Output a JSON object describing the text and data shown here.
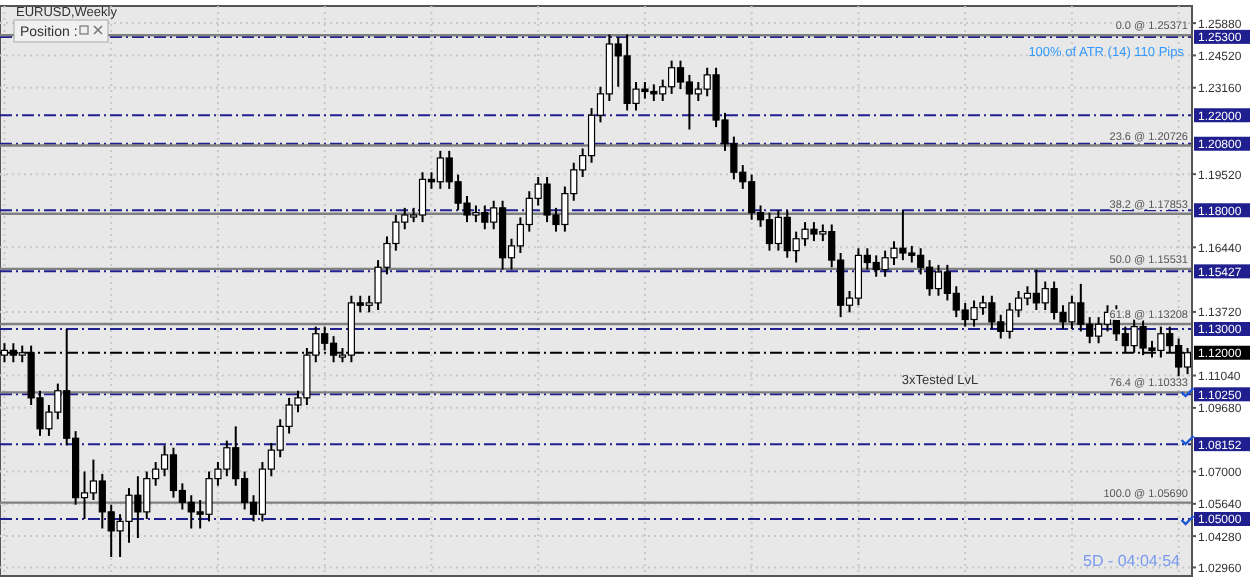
{
  "chart_data": {
    "type": "candlestick",
    "title": "EURUSD,Weekly",
    "categories": [
      null,
      null,
      null,
      null,
      null,
      null,
      null,
      null,
      null,
      null,
      null,
      null,
      null,
      null,
      null,
      null,
      null,
      null,
      null,
      null,
      null,
      null,
      null,
      null,
      null,
      null,
      null,
      null,
      null,
      null,
      null,
      null,
      null,
      null,
      null,
      null,
      null,
      null,
      null,
      null,
      null,
      null,
      null,
      null,
      null,
      null,
      null,
      null,
      null,
      null,
      null,
      null,
      null,
      null,
      null,
      null,
      null,
      null,
      null,
      null,
      null,
      null,
      null,
      null,
      null,
      null,
      null,
      null,
      null,
      null,
      null,
      null,
      null,
      null,
      null,
      null,
      null,
      null,
      null,
      null,
      null,
      null,
      null,
      null,
      null,
      null,
      null,
      null,
      null,
      null,
      null,
      null,
      null,
      null,
      null,
      null,
      null,
      null,
      null,
      null,
      null,
      null,
      null,
      null,
      null,
      null,
      null,
      null,
      null,
      null,
      null,
      null,
      null,
      null,
      null,
      null,
      null,
      null,
      null,
      null,
      null,
      null,
      null,
      null,
      null,
      null,
      null,
      null,
      null,
      null,
      null,
      null,
      null,
      null
    ],
    "ohlc": [
      [
        1.119,
        1.124,
        1.116,
        1.121
      ],
      [
        1.121,
        1.124,
        1.116,
        1.119
      ],
      [
        1.119,
        1.123,
        1.116,
        1.12
      ],
      [
        1.12,
        1.123,
        1.098,
        1.101
      ],
      [
        1.101,
        1.104,
        1.085,
        1.088
      ],
      [
        1.088,
        1.098,
        1.085,
        1.095
      ],
      [
        1.095,
        1.107,
        1.092,
        1.104
      ],
      [
        1.104,
        1.13,
        1.081,
        1.084
      ],
      [
        1.084,
        1.087,
        1.056,
        1.059
      ],
      [
        1.059,
        1.07,
        1.05,
        1.061
      ],
      [
        1.061,
        1.075,
        1.058,
        1.066
      ],
      [
        1.066,
        1.069,
        1.046,
        1.053
      ],
      [
        1.053,
        1.056,
        1.034,
        1.045
      ],
      [
        1.045,
        1.052,
        1.034,
        1.049
      ],
      [
        1.049,
        1.063,
        1.04,
        1.06
      ],
      [
        1.06,
        1.068,
        1.042,
        1.053
      ],
      [
        1.053,
        1.07,
        1.05,
        1.067
      ],
      [
        1.067,
        1.074,
        1.064,
        1.071
      ],
      [
        1.071,
        1.081,
        1.068,
        1.077
      ],
      [
        1.077,
        1.08,
        1.059,
        1.062
      ],
      [
        1.062,
        1.065,
        1.054,
        1.057
      ],
      [
        1.057,
        1.06,
        1.046,
        1.053
      ],
      [
        1.053,
        1.058,
        1.046,
        1.052
      ],
      [
        1.052,
        1.07,
        1.049,
        1.067
      ],
      [
        1.067,
        1.074,
        1.064,
        1.071
      ],
      [
        1.071,
        1.083,
        1.068,
        1.08
      ],
      [
        1.08,
        1.089,
        1.064,
        1.067
      ],
      [
        1.067,
        1.07,
        1.054,
        1.057
      ],
      [
        1.057,
        1.06,
        1.049,
        1.052
      ],
      [
        1.052,
        1.074,
        1.049,
        1.071
      ],
      [
        1.071,
        1.082,
        1.068,
        1.079
      ],
      [
        1.079,
        1.092,
        1.076,
        1.089
      ],
      [
        1.089,
        1.101,
        1.086,
        1.098
      ],
      [
        1.098,
        1.104,
        1.095,
        1.101
      ],
      [
        1.101,
        1.122,
        1.098,
        1.119
      ],
      [
        1.119,
        1.131,
        1.116,
        1.128
      ],
      [
        1.128,
        1.131,
        1.121,
        1.124
      ],
      [
        1.124,
        1.127,
        1.116,
        1.119
      ],
      [
        1.119,
        1.122,
        1.116,
        1.119
      ],
      [
        1.119,
        1.144,
        1.116,
        1.141
      ],
      [
        1.141,
        1.144,
        1.137,
        1.14
      ],
      [
        1.14,
        1.144,
        1.137,
        1.141
      ],
      [
        1.141,
        1.159,
        1.138,
        1.156
      ],
      [
        1.156,
        1.169,
        1.153,
        1.166
      ],
      [
        1.166,
        1.178,
        1.163,
        1.175
      ],
      [
        1.175,
        1.181,
        1.172,
        1.178
      ],
      [
        1.178,
        1.181,
        1.175,
        1.178
      ],
      [
        1.178,
        1.196,
        1.175,
        1.193
      ],
      [
        1.193,
        1.196,
        1.189,
        1.192
      ],
      [
        1.192,
        1.205,
        1.189,
        1.202
      ],
      [
        1.202,
        1.205,
        1.189,
        1.192
      ],
      [
        1.192,
        1.195,
        1.18,
        1.183
      ],
      [
        1.183,
        1.186,
        1.175,
        1.178
      ],
      [
        1.178,
        1.182,
        1.175,
        1.179
      ],
      [
        1.179,
        1.182,
        1.172,
        1.175
      ],
      [
        1.175,
        1.184,
        1.172,
        1.181
      ],
      [
        1.181,
        1.184,
        1.155,
        1.16
      ],
      [
        1.16,
        1.168,
        1.155,
        1.165
      ],
      [
        1.165,
        1.177,
        1.162,
        1.174
      ],
      [
        1.174,
        1.188,
        1.171,
        1.185
      ],
      [
        1.185,
        1.194,
        1.182,
        1.191
      ],
      [
        1.191,
        1.194,
        1.175,
        1.178
      ],
      [
        1.178,
        1.181,
        1.171,
        1.174
      ],
      [
        1.174,
        1.19,
        1.171,
        1.187
      ],
      [
        1.187,
        1.2,
        1.184,
        1.197
      ],
      [
        1.197,
        1.206,
        1.194,
        1.203
      ],
      [
        1.203,
        1.223,
        1.2,
        1.22
      ],
      [
        1.22,
        1.232,
        1.217,
        1.229
      ],
      [
        1.229,
        1.254,
        1.226,
        1.25
      ],
      [
        1.25,
        1.253,
        1.232,
        1.245
      ],
      [
        1.245,
        1.254,
        1.222,
        1.225
      ],
      [
        1.225,
        1.234,
        1.222,
        1.231
      ],
      [
        1.231,
        1.234,
        1.227,
        1.23
      ],
      [
        1.23,
        1.233,
        1.226,
        1.229
      ],
      [
        1.229,
        1.235,
        1.226,
        1.232
      ],
      [
        1.232,
        1.243,
        1.229,
        1.24
      ],
      [
        1.24,
        1.243,
        1.231,
        1.234
      ],
      [
        1.234,
        1.237,
        1.214,
        1.229
      ],
      [
        1.229,
        1.234,
        1.226,
        1.231
      ],
      [
        1.231,
        1.24,
        1.228,
        1.237
      ],
      [
        1.237,
        1.24,
        1.215,
        1.218
      ],
      [
        1.218,
        1.221,
        1.205,
        1.208
      ],
      [
        1.208,
        1.211,
        1.193,
        1.196
      ],
      [
        1.196,
        1.199,
        1.189,
        1.192
      ],
      [
        1.192,
        1.195,
        1.176,
        1.179
      ],
      [
        1.179,
        1.182,
        1.173,
        1.176
      ],
      [
        1.176,
        1.179,
        1.163,
        1.166
      ],
      [
        1.166,
        1.18,
        1.163,
        1.177
      ],
      [
        1.177,
        1.18,
        1.16,
        1.163
      ],
      [
        1.163,
        1.171,
        1.158,
        1.168
      ],
      [
        1.168,
        1.175,
        1.165,
        1.172
      ],
      [
        1.172,
        1.175,
        1.167,
        1.17
      ],
      [
        1.17,
        1.174,
        1.167,
        1.171
      ],
      [
        1.171,
        1.174,
        1.156,
        1.159
      ],
      [
        1.159,
        1.162,
        1.135,
        1.14
      ],
      [
        1.14,
        1.146,
        1.137,
        1.143
      ],
      [
        1.143,
        1.164,
        1.14,
        1.161
      ],
      [
        1.161,
        1.164,
        1.155,
        1.158
      ],
      [
        1.158,
        1.161,
        1.152,
        1.155
      ],
      [
        1.155,
        1.163,
        1.152,
        1.16
      ],
      [
        1.16,
        1.167,
        1.157,
        1.164
      ],
      [
        1.164,
        1.18,
        1.159,
        1.162
      ],
      [
        1.162,
        1.165,
        1.158,
        1.161
      ],
      [
        1.161,
        1.164,
        1.153,
        1.156
      ],
      [
        1.156,
        1.159,
        1.144,
        1.147
      ],
      [
        1.147,
        1.157,
        1.144,
        1.154
      ],
      [
        1.154,
        1.157,
        1.142,
        1.145
      ],
      [
        1.145,
        1.148,
        1.135,
        1.138
      ],
      [
        1.138,
        1.141,
        1.131,
        1.134
      ],
      [
        1.134,
        1.142,
        1.131,
        1.139
      ],
      [
        1.139,
        1.144,
        1.136,
        1.141
      ],
      [
        1.141,
        1.144,
        1.13,
        1.133
      ],
      [
        1.133,
        1.136,
        1.126,
        1.129
      ],
      [
        1.129,
        1.141,
        1.126,
        1.138
      ],
      [
        1.138,
        1.146,
        1.135,
        1.143
      ],
      [
        1.143,
        1.148,
        1.14,
        1.145
      ],
      [
        1.145,
        1.155,
        1.138,
        1.141
      ],
      [
        1.141,
        1.15,
        1.138,
        1.147
      ],
      [
        1.147,
        1.15,
        1.134,
        1.137
      ],
      [
        1.137,
        1.14,
        1.13,
        1.133
      ],
      [
        1.133,
        1.144,
        1.13,
        1.141
      ],
      [
        1.141,
        1.149,
        1.129,
        1.132
      ],
      [
        1.132,
        1.135,
        1.124,
        1.127
      ],
      [
        1.127,
        1.135,
        1.124,
        1.132
      ],
      [
        1.132,
        1.14,
        1.129,
        1.137
      ],
      [
        1.137,
        1.14,
        1.125,
        1.128
      ],
      [
        1.128,
        1.131,
        1.12,
        1.123
      ],
      [
        1.123,
        1.134,
        1.12,
        1.131
      ],
      [
        1.131,
        1.134,
        1.119,
        1.122
      ],
      [
        1.122,
        1.125,
        1.118,
        1.121
      ],
      [
        1.121,
        1.131,
        1.118,
        1.128
      ],
      [
        1.128,
        1.131,
        1.12,
        1.123
      ],
      [
        1.123,
        1.126,
        1.109,
        1.114
      ],
      [
        1.114,
        1.122,
        1.111,
        1.12
      ]
    ],
    "ylim": [
      1.026,
      1.266
    ],
    "yticks": [
      {
        "value": 1.2588,
        "label": "1.25880"
      },
      {
        "value": 1.2452,
        "label": "1.24520"
      },
      {
        "value": 1.2316,
        "label": "1.23160"
      },
      {
        "value": 1.1952,
        "label": "1.19520"
      },
      {
        "value": 1.1644,
        "label": "1.16440"
      },
      {
        "value": 1.1372,
        "label": "1.13720"
      },
      {
        "value": 1.1104,
        "label": "1.11040"
      },
      {
        "value": 1.0968,
        "label": "1.09680"
      },
      {
        "value": 1.07,
        "label": "1.07000"
      },
      {
        "value": 1.0564,
        "label": "1.05640"
      },
      {
        "value": 1.0428,
        "label": "1.04280"
      },
      {
        "value": 1.0296,
        "label": "1.02960"
      }
    ],
    "grid": true,
    "ref_lines": [
      {
        "axis": "y",
        "value": 1.253,
        "label": "1.25300",
        "color": "#1f1f8f",
        "line_style": "dashed"
      },
      {
        "axis": "y",
        "value": 1.22,
        "label": "1.22000",
        "color": "#1f1f8f",
        "line_style": "dashed"
      },
      {
        "axis": "y",
        "value": 1.208,
        "label": "1.20800",
        "color": "#1f1f8f",
        "line_style": "dashed"
      },
      {
        "axis": "y",
        "value": 1.18,
        "label": "1.18000",
        "color": "#1f1f8f",
        "line_style": "dashed"
      },
      {
        "axis": "y",
        "value": 1.15427,
        "label": "1.15427",
        "color": "#1f1f8f",
        "line_style": "dashed"
      },
      {
        "axis": "y",
        "value": 1.13,
        "label": "1.13000",
        "color": "#1f1f8f",
        "line_style": "dashed"
      },
      {
        "axis": "y",
        "value": 1.12,
        "label": "1.12000",
        "color": "#000000",
        "line_style": "dashed"
      },
      {
        "axis": "y",
        "value": 1.1025,
        "label": "1.10250",
        "color": "#1f1f8f",
        "line_style": "dashed"
      },
      {
        "axis": "y",
        "value": 1.08152,
        "label": "1.08152",
        "color": "#1f1f8f",
        "line_style": "dashed"
      },
      {
        "axis": "y",
        "value": 1.05,
        "label": "1.05000",
        "color": "#1f1f8f",
        "line_style": "dashed"
      },
      {
        "axis": "y",
        "value": 1.25371,
        "label": "0.0 @ 1.25371",
        "color": "#808080",
        "line_style": "solid"
      },
      {
        "axis": "y",
        "value": 1.20726,
        "label": "23.6 @ 1.20726",
        "color": "#808080",
        "line_style": "solid"
      },
      {
        "axis": "y",
        "value": 1.17853,
        "label": "38.2 @ 1.17853",
        "color": "#808080",
        "line_style": "solid"
      },
      {
        "axis": "y",
        "value": 1.15531,
        "label": "50.0 @ 1.15531",
        "color": "#808080",
        "line_style": "solid"
      },
      {
        "axis": "y",
        "value": 1.13208,
        "label": "61.8 @ 1.13208",
        "color": "#808080",
        "line_style": "solid"
      },
      {
        "axis": "y",
        "value": 1.10333,
        "label": "76.4 @ 1.10333",
        "color": "#808080",
        "line_style": "solid"
      },
      {
        "axis": "y",
        "value": 1.0569,
        "label": "100.0 @ 1.05690",
        "color": "#808080",
        "line_style": "solid"
      }
    ],
    "annotations": [
      "Position :",
      "3xTested LvL",
      "100% of ATR (14) 110 Pips",
      "5D - 04:04:54"
    ]
  }
}
